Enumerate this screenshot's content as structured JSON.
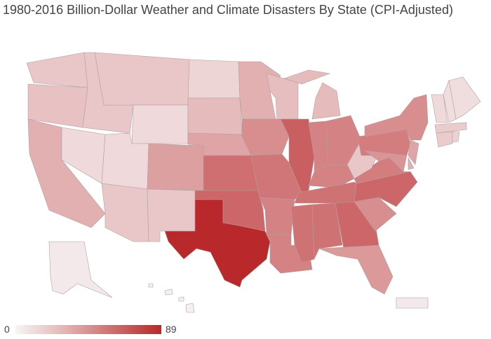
{
  "title": "1980-2016 Billion-Dollar Weather and Climate Disasters By State (CPI-Adjusted)",
  "legend": {
    "min_label": "0",
    "max_label": "89",
    "min": 0,
    "max": 89,
    "color_low": "#f7f5f5",
    "color_high": "#b9282b"
  },
  "states": {
    "WA": 20,
    "OR": 22,
    "CA": 30,
    "NV": 12,
    "ID": 20,
    "MT": 20,
    "WY": 12,
    "UT": 12,
    "AZ": 20,
    "CO": 37,
    "NM": 20,
    "ND": 14,
    "SD": 25,
    "NE": 35,
    "KS": 58,
    "OK": 62,
    "TX": 89,
    "MN": 30,
    "IA": 45,
    "MO": 55,
    "AR": 50,
    "LA": 50,
    "WI": 24,
    "IL": 65,
    "MI": 25,
    "IN": 50,
    "OH": 50,
    "KY": 50,
    "TN": 57,
    "MS": 57,
    "AL": 57,
    "GA": 62,
    "FL": 40,
    "SC": 45,
    "NC": 62,
    "VA": 52,
    "WV": 20,
    "PA": 52,
    "NY": 45,
    "NJ": 35,
    "MD": 42,
    "DE": 30,
    "ME": 10,
    "NH": 10,
    "VT": 12,
    "MA": 18,
    "CT": 18,
    "RI": 15,
    "AK": 5,
    "HI": 2,
    "PR": 5
  }
}
